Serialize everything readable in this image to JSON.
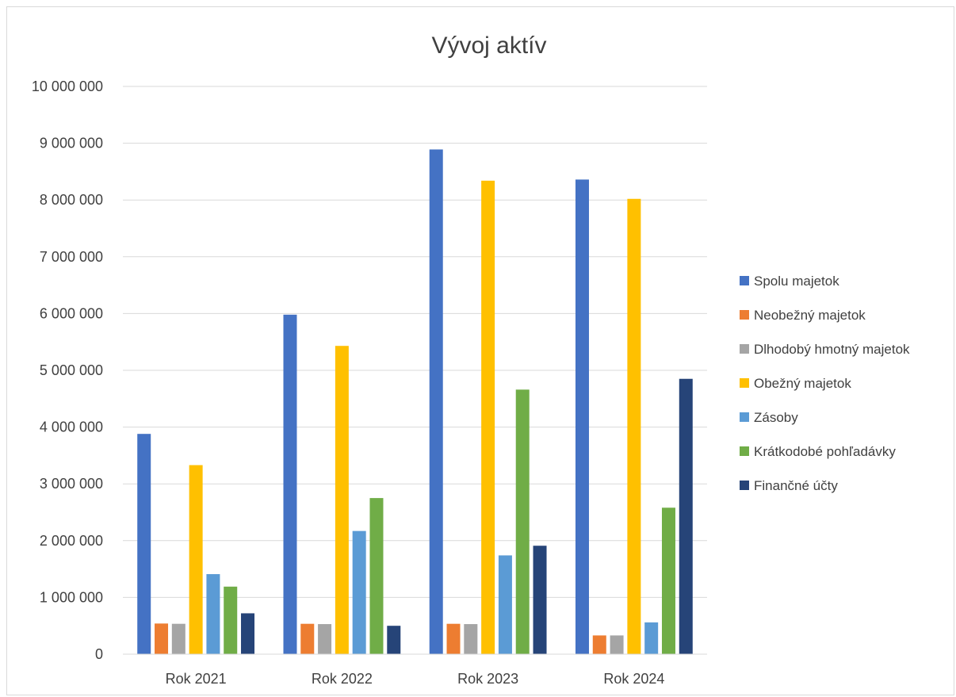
{
  "chart_data": {
    "type": "bar",
    "title": "Vývoj aktív",
    "xlabel": "",
    "ylabel": "",
    "ylim": [
      0,
      10000000
    ],
    "yticks": [
      0,
      1000000,
      2000000,
      3000000,
      4000000,
      5000000,
      6000000,
      7000000,
      8000000,
      9000000,
      10000000
    ],
    "ytick_labels": [
      "0",
      "1 000 000",
      "2 000 000",
      "3 000 000",
      "4 000 000",
      "5 000 000",
      "6 000 000",
      "7 000 000",
      "8 000 000",
      "9 000 000",
      "10 000 000"
    ],
    "grid": true,
    "legend_position": "right",
    "categories": [
      "Rok 2021",
      "Rok 2022",
      "Rok 2023",
      "Rok 2024"
    ],
    "series": [
      {
        "name": "Spolu majetok",
        "color": "#4472C4",
        "values": [
          3880000,
          5980000,
          8890000,
          8360000
        ]
      },
      {
        "name": "Neobežný majetok",
        "color": "#ED7D31",
        "values": [
          540000,
          535000,
          535000,
          330000
        ]
      },
      {
        "name": "Dlhodobý hmotný majetok",
        "color": "#A5A5A5",
        "values": [
          535000,
          530000,
          530000,
          330000
        ]
      },
      {
        "name": "Obežný majetok",
        "color": "#FFC000",
        "values": [
          3330000,
          5430000,
          8340000,
          8020000
        ]
      },
      {
        "name": "Zásoby",
        "color": "#5B9BD5",
        "values": [
          1410000,
          2170000,
          1740000,
          560000
        ]
      },
      {
        "name": "Krátkodobé pohľadávky",
        "color": "#70AD47",
        "values": [
          1190000,
          2750000,
          4660000,
          2580000
        ]
      },
      {
        "name": "Finančné účty",
        "color": "#264478",
        "values": [
          720000,
          500000,
          1910000,
          4850000
        ]
      }
    ]
  }
}
